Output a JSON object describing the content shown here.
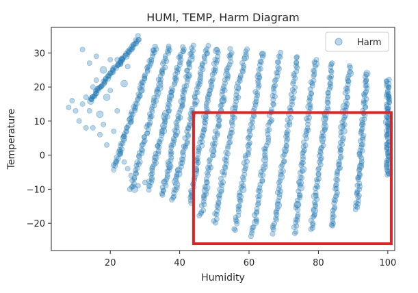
{
  "chart_data": {
    "type": "scatter",
    "title": "HUMI, TEMP, Harm Diagram",
    "xlabel": "Humidity",
    "ylabel": "Temperature",
    "xlim": [
      3,
      102
    ],
    "ylim": [
      -28,
      37.5
    ],
    "x_ticks": [
      20,
      40,
      60,
      80,
      100
    ],
    "y_ticks": [
      -20,
      -10,
      0,
      10,
      20,
      30
    ],
    "x_tick_labels": [
      "20",
      "40",
      "60",
      "80",
      "100"
    ],
    "y_tick_labels": [
      "−20",
      "−10",
      "0",
      "10",
      "20",
      "30"
    ],
    "grid": false,
    "legend": {
      "position": "top-right",
      "entries": [
        "Harm"
      ]
    },
    "series": [
      {
        "name": "Harm",
        "color": "#1f77b4",
        "alpha": 0.3,
        "marker": "circle",
        "bands": [
          {
            "x_hi": 28,
            "y_hi": 34,
            "x_lo": 14,
            "y_lo": 16
          },
          {
            "x_hi": 33,
            "y_hi": 32,
            "x_lo": 21,
            "y_lo": -4
          },
          {
            "x_hi": 37,
            "y_hi": 32,
            "x_lo": 26,
            "y_lo": -10
          },
          {
            "x_hi": 41,
            "y_hi": 32,
            "x_lo": 31,
            "y_lo": -10
          },
          {
            "x_hi": 44,
            "y_hi": 32,
            "x_lo": 35,
            "y_lo": -12
          },
          {
            "x_hi": 48,
            "y_hi": 32,
            "x_lo": 38,
            "y_lo": -13
          },
          {
            "x_hi": 51,
            "y_hi": 31,
            "x_lo": 43,
            "y_lo": -14
          },
          {
            "x_hi": 55,
            "y_hi": 31,
            "x_lo": 46,
            "y_lo": -18
          },
          {
            "x_hi": 59,
            "y_hi": 31,
            "x_lo": 50,
            "y_lo": -20
          },
          {
            "x_hi": 64,
            "y_hi": 30,
            "x_lo": 56,
            "y_lo": -22
          },
          {
            "x_hi": 69,
            "y_hi": 30,
            "x_lo": 61,
            "y_lo": -24
          },
          {
            "x_hi": 74,
            "y_hi": 29,
            "x_lo": 67,
            "y_lo": -23
          },
          {
            "x_hi": 79,
            "y_hi": 28,
            "x_lo": 73,
            "y_lo": -23
          },
          {
            "x_hi": 84,
            "y_hi": 27,
            "x_lo": 78,
            "y_lo": -22
          },
          {
            "x_hi": 89,
            "y_hi": 26,
            "x_lo": 84,
            "y_lo": -21
          },
          {
            "x_hi": 94,
            "y_hi": 24,
            "x_lo": 91,
            "y_lo": -16
          },
          {
            "x_hi": 100,
            "y_hi": 22,
            "x_lo": 100,
            "y_lo": -6
          }
        ],
        "scattered_points": [
          [
            8,
            14
          ],
          [
            9,
            16
          ],
          [
            10,
            13
          ],
          [
            11,
            10
          ],
          [
            12,
            31
          ],
          [
            12,
            15
          ],
          [
            13,
            17
          ],
          [
            14,
            13
          ],
          [
            15,
            20
          ],
          [
            15,
            8
          ],
          [
            16,
            22
          ],
          [
            17,
            12
          ],
          [
            17,
            6
          ],
          [
            18,
            25
          ],
          [
            18,
            9
          ],
          [
            19,
            17
          ],
          [
            19,
            3
          ],
          [
            20,
            28
          ],
          [
            20,
            19
          ],
          [
            21,
            7
          ],
          [
            22,
            28
          ],
          [
            22,
            13
          ],
          [
            23,
            1
          ],
          [
            24,
            21
          ],
          [
            24,
            -2
          ],
          [
            25,
            26
          ],
          [
            25,
            -4
          ],
          [
            26,
            12
          ],
          [
            26,
            -6
          ],
          [
            27,
            -10
          ],
          [
            28,
            35
          ],
          [
            28,
            -9
          ],
          [
            30,
            -8
          ],
          [
            14,
            27
          ],
          [
            16,
            29
          ],
          [
            13,
            8
          ]
        ]
      }
    ],
    "annotations": [
      {
        "type": "rectangle",
        "color": "#d62728",
        "x_range": [
          44,
          101
        ],
        "y_range": [
          -26,
          12.5
        ]
      }
    ]
  }
}
